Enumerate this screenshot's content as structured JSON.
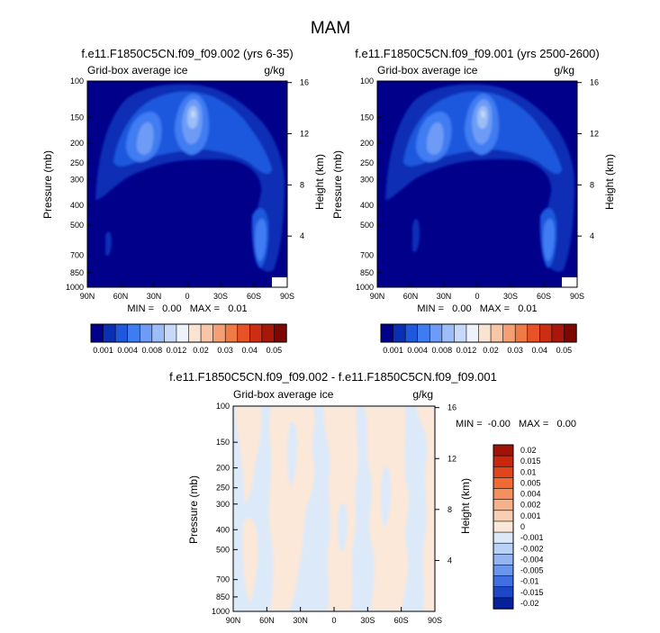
{
  "figure": {
    "title": "MAM"
  },
  "chart_data": [
    {
      "type": "heatmap",
      "title": "f.e11.F1850C5CN.f09_f09.002 (yrs 6-35)",
      "left_label": "Grid-box average ice",
      "right_label": "g/kg",
      "xlabel": "",
      "ylabel": "Pressure (mb)",
      "y2label": "Height (km)",
      "x_ticks": [
        "90N",
        "60N",
        "30N",
        "0",
        "30S",
        "60S",
        "90S"
      ],
      "y_ticks": [
        100,
        150,
        200,
        250,
        300,
        400,
        500,
        700,
        850,
        1000
      ],
      "y2_ticks": [
        16,
        12,
        8,
        4
      ],
      "stats": "MIN =   0.00   MAX =   0.01",
      "colorbar_labels": [
        "0.001",
        "0.004",
        "0.008",
        "0.012",
        "0.02",
        "0.03",
        "0.04",
        "0.05"
      ],
      "colorbar_colors": [
        "#00008b",
        "#0a2fb5",
        "#1f58dd",
        "#3f7cf2",
        "#6d9bf5",
        "#9cbdf7",
        "#c6d9f9",
        "#eef3fb",
        "#f9e3d2",
        "#f7c6a8",
        "#f5a074",
        "#f07a45",
        "#e85226",
        "#cd2e13",
        "#a7180a",
        "#7e0703"
      ]
    },
    {
      "type": "heatmap",
      "title": "f.e11.F1850C5CN.f09_f09.001 (yrs 2500-2600)",
      "left_label": "Grid-box average ice",
      "right_label": "g/kg",
      "xlabel": "",
      "ylabel": "Pressure (mb)",
      "y2label": "Height (km)",
      "x_ticks": [
        "90N",
        "60N",
        "30N",
        "0",
        "30S",
        "60S",
        "90S"
      ],
      "y_ticks": [
        100,
        150,
        200,
        250,
        300,
        400,
        500,
        700,
        850,
        1000
      ],
      "y2_ticks": [
        16,
        12,
        8,
        4
      ],
      "stats": "MIN =   0.00   MAX =   0.01",
      "colorbar_labels": [
        "0.001",
        "0.004",
        "0.008",
        "0.012",
        "0.02",
        "0.03",
        "0.04",
        "0.05"
      ]
    },
    {
      "type": "heatmap",
      "title": "f.e11.F1850C5CN.f09_f09.002 - f.e11.F1850C5CN.f09_f09.001",
      "left_label": "Grid-box average ice",
      "right_label": "g/kg",
      "xlabel": "",
      "ylabel": "Pressure (mb)",
      "y2label": "Height (km)",
      "x_ticks": [
        "90N",
        "60N",
        "30N",
        "0",
        "30S",
        "60S",
        "90S"
      ],
      "y_ticks": [
        100,
        150,
        200,
        250,
        300,
        400,
        500,
        700,
        850,
        1000
      ],
      "y2_ticks": [
        16,
        12,
        8,
        4
      ],
      "stats": "MIN =  -0.00   MAX =   0.00",
      "colorbar_labels": [
        "0.02",
        "0.015",
        "0.01",
        "0.005",
        "0.004",
        "0.002",
        "0.001",
        "0",
        "-0.001",
        "-0.002",
        "-0.004",
        "-0.005",
        "-0.01",
        "-0.015",
        "-0.02"
      ],
      "colorbar_colors": [
        "#a01408",
        "#c9280f",
        "#e0451c",
        "#ef6a35",
        "#f3905d",
        "#f5b18a",
        "#f8cfb3",
        "#fbe8d8",
        "#dbe8fa",
        "#b9d1f6",
        "#94b5f1",
        "#6b95ea",
        "#3f6fe0",
        "#1d47c6",
        "#06209a"
      ]
    }
  ]
}
